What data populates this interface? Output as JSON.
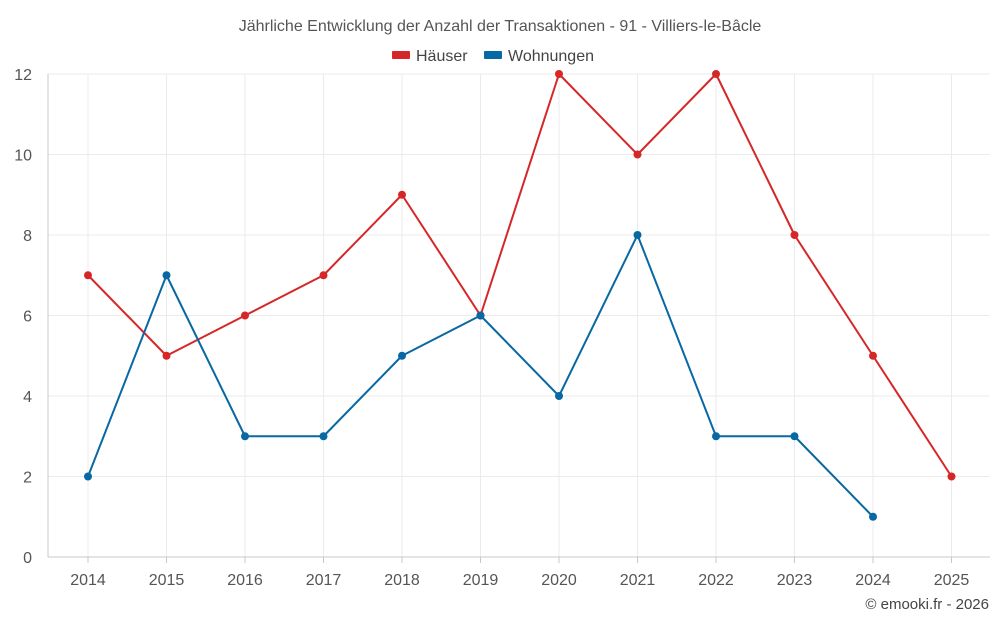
{
  "chart_data": {
    "type": "line",
    "title": "Jährliche Entwicklung der Anzahl der Transaktionen - 91 - Villiers-le-Bâcle",
    "categories": [
      "2014",
      "2015",
      "2016",
      "2017",
      "2018",
      "2019",
      "2020",
      "2021",
      "2022",
      "2023",
      "2024",
      "2025"
    ],
    "ylim": [
      0,
      12
    ],
    "yticks": [
      0,
      2,
      4,
      6,
      8,
      10,
      12
    ],
    "grid": true,
    "legend_position": "top-center",
    "xlabel": "",
    "ylabel": "",
    "series": [
      {
        "name": "Häuser",
        "color": "#d62728",
        "values": [
          7,
          5,
          6,
          7,
          9,
          6,
          12,
          10,
          12,
          8,
          5,
          2
        ]
      },
      {
        "name": "Wohnungen",
        "color": "#0868a3",
        "values": [
          2,
          7,
          3,
          3,
          5,
          6,
          4,
          8,
          3,
          3,
          1,
          null
        ]
      }
    ]
  },
  "credit": "© emooki.fr - 2026"
}
